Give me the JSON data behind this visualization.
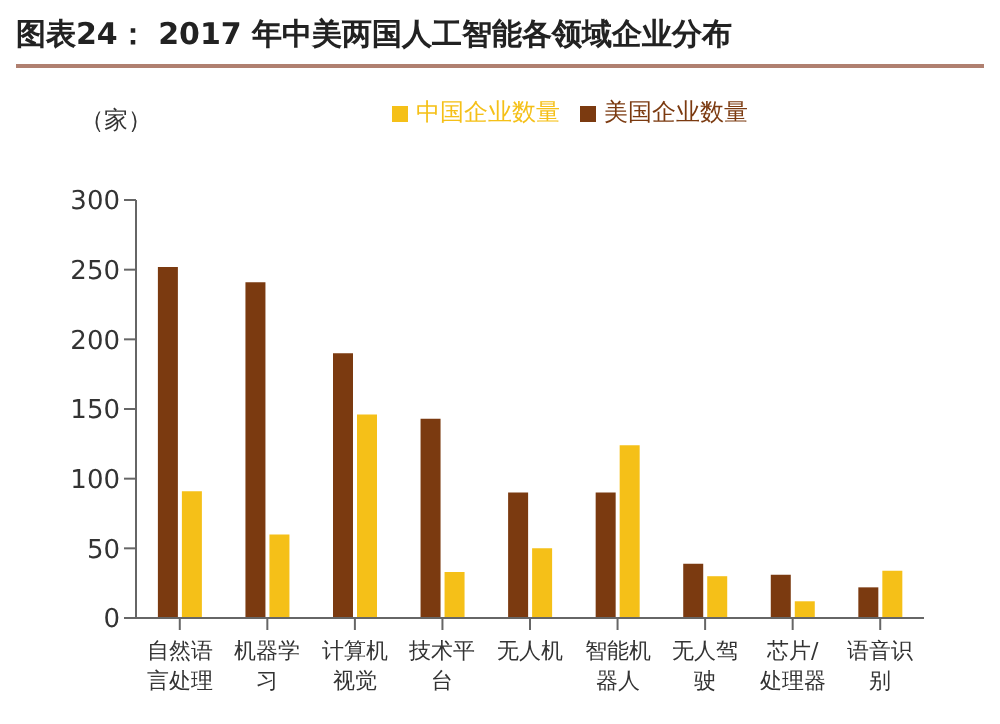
{
  "chart_data": {
    "type": "bar",
    "title": "图表24：  2017 年中美两国人工智能各领域企业分布",
    "ylabel": "（家）",
    "categories": [
      "自然语言处理",
      "机器学习",
      "计算机视觉",
      "技术平台",
      "无人机",
      "智能机器人",
      "无人驾驶",
      "芯片/处理器",
      "语音识别"
    ],
    "series": [
      {
        "name": "美国企业数量",
        "color": "#7b3a10",
        "values": [
          252,
          241,
          190,
          143,
          90,
          90,
          39,
          31,
          22
        ]
      },
      {
        "name": "中国企业数量",
        "color": "#f5c018",
        "values": [
          91,
          60,
          146,
          33,
          50,
          124,
          30,
          12,
          34
        ]
      }
    ],
    "ylim": [
      0,
      300
    ],
    "yticks": [
      0,
      50,
      100,
      150,
      200,
      250,
      300
    ],
    "grid": false,
    "legend": "top"
  }
}
